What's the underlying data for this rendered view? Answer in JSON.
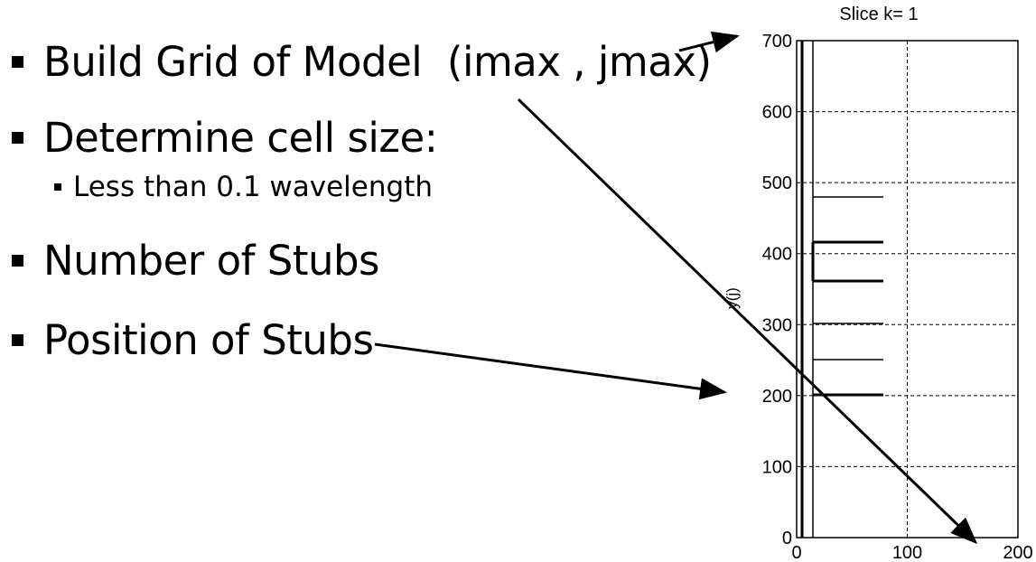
{
  "bullets": [
    {
      "text": "Build Grid of Model  (imax , jmax)",
      "level": 1
    },
    {
      "text": "Determine cell size:",
      "level": 1
    },
    {
      "text": "Less than 0.1 wavelength",
      "level": 2
    },
    {
      "text": "Number of Stubs",
      "level": 1
    },
    {
      "text": "Position of Stubs",
      "level": 1
    }
  ],
  "plot": {
    "title": "Slice k= 1",
    "ylabel": "y(j)",
    "x_ticks": [
      "0",
      "100",
      "200"
    ],
    "y_ticks": [
      "0",
      "100",
      "200",
      "300",
      "400",
      "500",
      "600",
      "700"
    ],
    "xlim": [
      0,
      200
    ],
    "ylim": [
      0,
      700
    ],
    "grid": true
  },
  "colors": {
    "ink": "#000000",
    "background": "#ffffff"
  }
}
